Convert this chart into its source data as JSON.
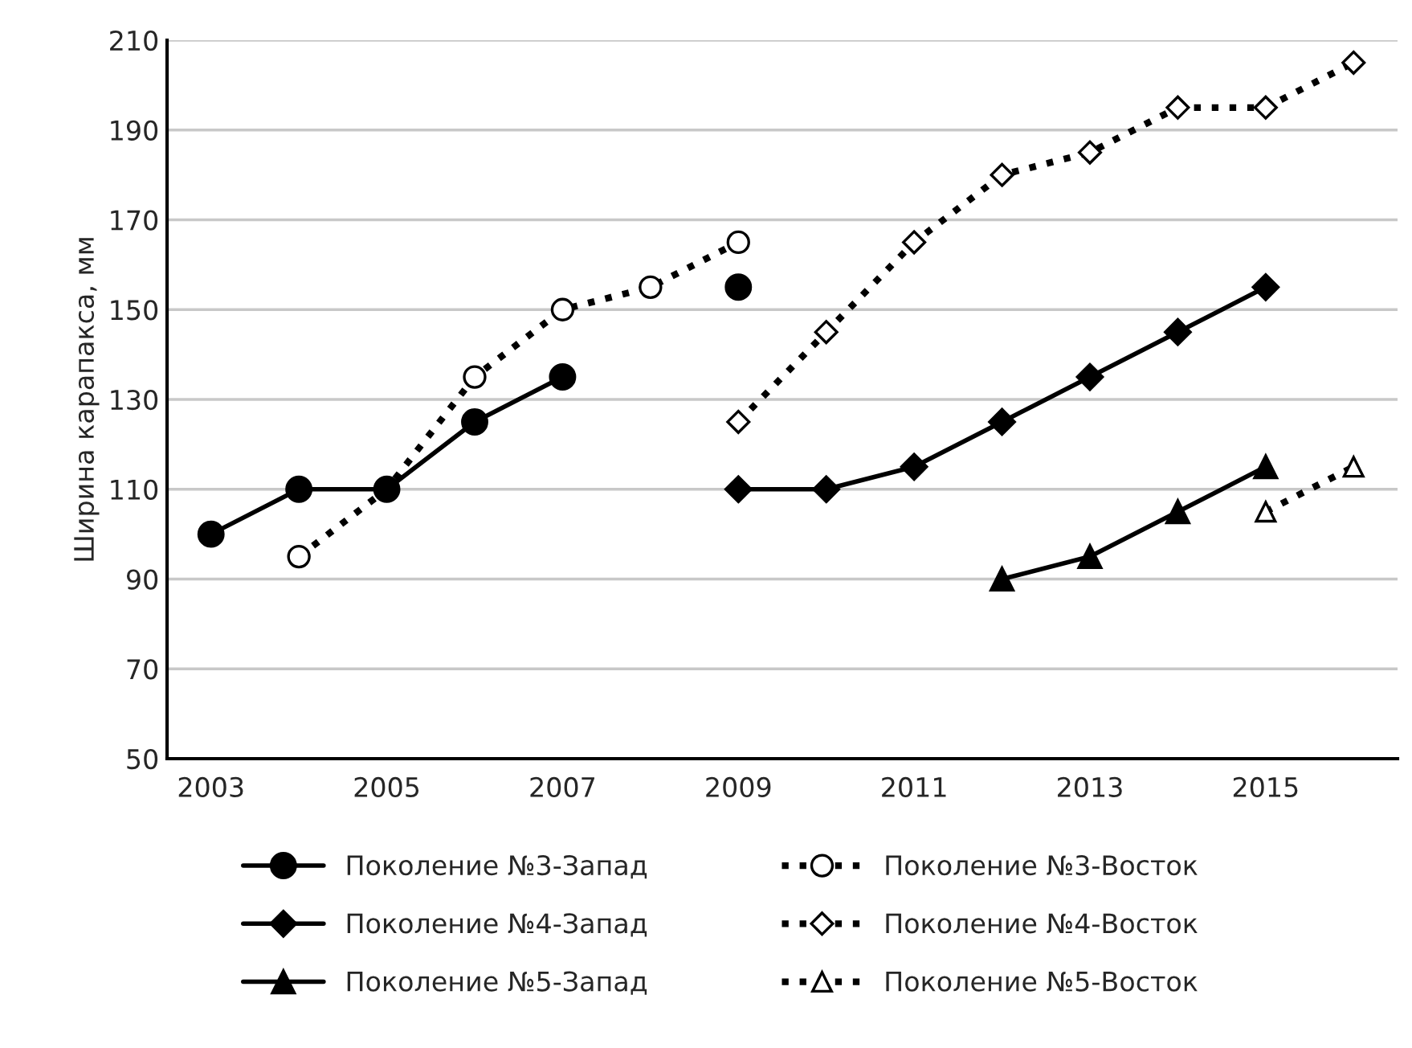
{
  "chart_data": {
    "type": "line",
    "ylabel": "Ширина карапакса, мм",
    "categories": [
      "2003",
      null,
      "2005",
      null,
      "2007",
      null,
      "2009",
      null,
      "2011",
      null,
      "2013",
      null,
      "2015",
      null
    ],
    "series": [
      {
        "name": "Поколение №3-Запад",
        "color": "#000000",
        "marker": "circle",
        "line_style": "solid",
        "values": [
          100,
          110,
          110,
          125,
          135,
          null,
          155,
          null,
          null,
          null,
          null,
          null,
          null,
          null
        ]
      },
      {
        "name": "Поколение №3-Восток",
        "color": "#000000",
        "marker": "circle",
        "line_style": "dotted",
        "values": [
          null,
          95,
          110,
          135,
          150,
          155,
          165,
          null,
          null,
          null,
          null,
          null,
          null,
          null
        ]
      },
      {
        "name": "Поколение №4-Запад",
        "color": "#000000",
        "marker": "diamond",
        "line_style": "solid",
        "values": [
          null,
          null,
          null,
          null,
          null,
          null,
          110,
          110,
          115,
          125,
          135,
          145,
          155,
          null
        ]
      },
      {
        "name": "Поколение №4-Восток",
        "color": "#000000",
        "marker": "diamond",
        "line_style": "dotted",
        "values": [
          null,
          null,
          null,
          null,
          null,
          null,
          125,
          145,
          165,
          180,
          185,
          195,
          195,
          205
        ]
      },
      {
        "name": "Поколение №5-Запад",
        "color": "#000000",
        "marker": "triangle",
        "line_style": "solid",
        "values": [
          null,
          null,
          null,
          null,
          null,
          null,
          null,
          null,
          null,
          90,
          95,
          105,
          115,
          null
        ]
      },
      {
        "name": "Поколение №5-Восток",
        "color": "#000000",
        "marker": "triangle",
        "line_style": "dotted",
        "values": [
          null,
          null,
          null,
          null,
          null,
          null,
          null,
          null,
          null,
          null,
          null,
          null,
          105,
          115
        ]
      }
    ],
    "ylim": [
      50,
      210
    ],
    "yticks": [
      50,
      70,
      90,
      110,
      130,
      150,
      170,
      190,
      210
    ],
    "grid": "y",
    "legend": "bottom"
  }
}
